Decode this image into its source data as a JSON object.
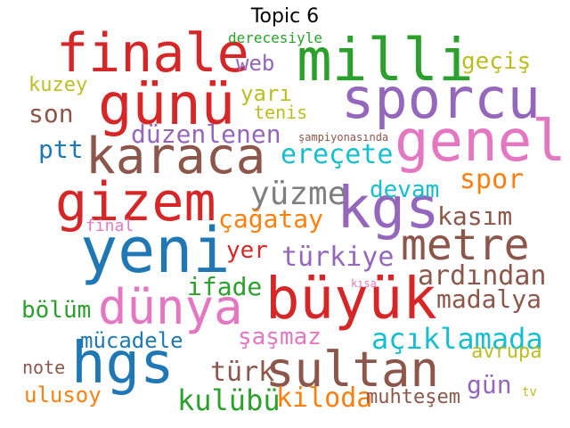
{
  "title": "Topic 6",
  "palette": {
    "blue": "#1f77b4",
    "orange": "#ff7f0e",
    "green": "#2ca02c",
    "red": "#d62728",
    "purple": "#9467bd",
    "brown": "#8c564b",
    "pink": "#e377c2",
    "gray": "#7f7f7f",
    "olive": "#bcbd22",
    "cyan": "#17becf"
  },
  "words": [
    {
      "text": "finale",
      "color": "red"
    },
    {
      "text": "milli",
      "color": "green"
    },
    {
      "text": "sporcu",
      "color": "purple"
    },
    {
      "text": "günü",
      "color": "red"
    },
    {
      "text": "genel",
      "color": "pink"
    },
    {
      "text": "karaca",
      "color": "brown"
    },
    {
      "text": "gizem",
      "color": "red"
    },
    {
      "text": "kgs",
      "color": "purple"
    },
    {
      "text": "yeni",
      "color": "blue"
    },
    {
      "text": "metre",
      "color": "brown"
    },
    {
      "text": "büyük",
      "color": "red"
    },
    {
      "text": "dünya",
      "color": "pink"
    },
    {
      "text": "hgs",
      "color": "blue"
    },
    {
      "text": "sultan",
      "color": "brown"
    },
    {
      "text": "derecesiyle",
      "color": "green"
    },
    {
      "text": "web",
      "color": "purple"
    },
    {
      "text": "geçiş",
      "color": "olive"
    },
    {
      "text": "kuzey",
      "color": "olive"
    },
    {
      "text": "son",
      "color": "brown"
    },
    {
      "text": "yarı",
      "color": "olive"
    },
    {
      "text": "tenis",
      "color": "olive"
    },
    {
      "text": "düzenlenen",
      "color": "purple"
    },
    {
      "text": "şampiyonasında",
      "color": "brown"
    },
    {
      "text": "ptt",
      "color": "blue"
    },
    {
      "text": "ereçete",
      "color": "cyan"
    },
    {
      "text": "yüzme",
      "color": "gray"
    },
    {
      "text": "devam",
      "color": "cyan"
    },
    {
      "text": "spor",
      "color": "orange"
    },
    {
      "text": "çağatay",
      "color": "orange"
    },
    {
      "text": "kasım",
      "color": "brown"
    },
    {
      "text": "final",
      "color": "pink"
    },
    {
      "text": "yer",
      "color": "red"
    },
    {
      "text": "türkiye",
      "color": "purple"
    },
    {
      "text": "ardından",
      "color": "brown"
    },
    {
      "text": "ifade",
      "color": "green"
    },
    {
      "text": "kısa",
      "color": "pink"
    },
    {
      "text": "madalya",
      "color": "brown"
    },
    {
      "text": "bölüm",
      "color": "green"
    },
    {
      "text": "şaşmaz",
      "color": "pink"
    },
    {
      "text": "açıklamada",
      "color": "cyan"
    },
    {
      "text": "mücadele",
      "color": "blue"
    },
    {
      "text": "avrupa",
      "color": "olive"
    },
    {
      "text": "note",
      "color": "brown"
    },
    {
      "text": "türk",
      "color": "brown"
    },
    {
      "text": "gün",
      "color": "purple"
    },
    {
      "text": "ulusoy",
      "color": "orange"
    },
    {
      "text": "kulübü",
      "color": "green"
    },
    {
      "text": "kiloda",
      "color": "orange"
    },
    {
      "text": "muhteşem",
      "color": "brown"
    },
    {
      "text": "tv",
      "color": "olive"
    }
  ]
}
